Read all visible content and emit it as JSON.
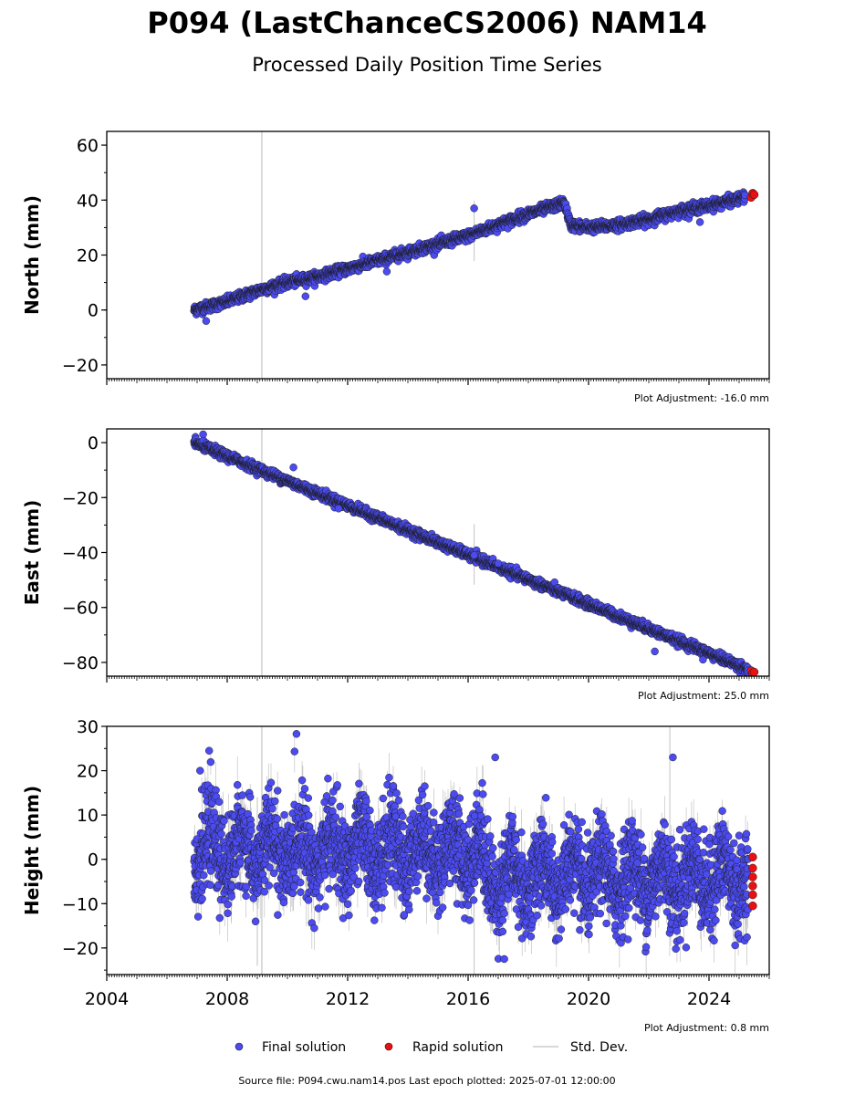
{
  "title": "P094 (LastChanceCS2006) NAM14",
  "subtitle": "Processed Daily Position Time Series",
  "source_note": "Source file: P094.cwu.nam14.pos  Last epoch plotted: 2025-07-01 12:00:00",
  "legend": {
    "final": "Final solution",
    "rapid": "Rapid solution",
    "stddev": "Std. Dev."
  },
  "colors": {
    "final": "#4b4bf0",
    "rapid": "#e81010",
    "stddev": "#bdbdbd",
    "marker_edge": "#1a1a1a"
  },
  "chart_data": [
    {
      "type": "scatter",
      "panel": "north",
      "ylabel": "North (mm)",
      "adjustment": "Plot Adjustment: -16.0 mm",
      "xlim": [
        2004,
        2026
      ],
      "ylim": [
        -25,
        65
      ],
      "yticks": [
        -20,
        0,
        20,
        40,
        60
      ],
      "ytick_labels": [
        "−20",
        "0",
        "20",
        "40",
        "60"
      ],
      "final_series": [
        {
          "x": 2006.9,
          "y": 0
        },
        {
          "x": 2008.0,
          "y": 3
        },
        {
          "x": 2009.0,
          "y": 7
        },
        {
          "x": 2010.0,
          "y": 10
        },
        {
          "x": 2011.0,
          "y": 12
        },
        {
          "x": 2012.0,
          "y": 15
        },
        {
          "x": 2013.0,
          "y": 18
        },
        {
          "x": 2014.0,
          "y": 21
        },
        {
          "x": 2015.0,
          "y": 24
        },
        {
          "x": 2016.0,
          "y": 27
        },
        {
          "x": 2017.0,
          "y": 31
        },
        {
          "x": 2018.0,
          "y": 35
        },
        {
          "x": 2019.2,
          "y": 39
        },
        {
          "x": 2019.4,
          "y": 31
        },
        {
          "x": 2020.0,
          "y": 30
        },
        {
          "x": 2021.0,
          "y": 31
        },
        {
          "x": 2022.0,
          "y": 33
        },
        {
          "x": 2023.0,
          "y": 36
        },
        {
          "x": 2024.0,
          "y": 38
        },
        {
          "x": 2025.2,
          "y": 41
        }
      ],
      "outliers": [
        {
          "x": 2007.3,
          "y": -4
        },
        {
          "x": 2016.2,
          "y": 37
        },
        {
          "x": 2010.6,
          "y": 5
        },
        {
          "x": 2013.3,
          "y": 14
        },
        {
          "x": 2023.7,
          "y": 32
        }
      ],
      "rapid_series": [
        {
          "x": 2025.4,
          "y": 41
        },
        {
          "x": 2025.45,
          "y": 42.5
        },
        {
          "x": 2025.5,
          "y": 42
        }
      ]
    },
    {
      "type": "scatter",
      "panel": "east",
      "ylabel": "East (mm)",
      "adjustment": "Plot Adjustment: 25.0 mm",
      "xlim": [
        2004,
        2026
      ],
      "ylim": [
        -85,
        5
      ],
      "yticks": [
        -80,
        -60,
        -40,
        -20,
        0
      ],
      "ytick_labels": [
        "−80",
        "−60",
        "−40",
        "−20",
        "0"
      ],
      "final_series": [
        {
          "x": 2006.9,
          "y": 0
        },
        {
          "x": 2025.3,
          "y": -82.5
        }
      ],
      "outliers": [
        {
          "x": 2007.2,
          "y": 3
        },
        {
          "x": 2010.2,
          "y": -9
        },
        {
          "x": 2011.7,
          "y": -24
        },
        {
          "x": 2016.2,
          "y": -41
        },
        {
          "x": 2017.0,
          "y": -44
        },
        {
          "x": 2022.2,
          "y": -76
        },
        {
          "x": 2023.8,
          "y": -79
        }
      ],
      "rapid_series": [
        {
          "x": 2025.4,
          "y": -83
        },
        {
          "x": 2025.45,
          "y": -84
        },
        {
          "x": 2025.5,
          "y": -83.5
        }
      ]
    },
    {
      "type": "scatter",
      "panel": "height",
      "ylabel": "Height (mm)",
      "adjustment": "Plot Adjustment: 0.8 mm",
      "xlim": [
        2004,
        2026
      ],
      "ylim": [
        -26,
        30
      ],
      "yticks": [
        -20,
        -10,
        0,
        10,
        20,
        30
      ],
      "ytick_labels": [
        "−20",
        "−10",
        "0",
        "10",
        "20",
        "30"
      ],
      "xticks": [
        2004,
        2008,
        2012,
        2016,
        2020,
        2024
      ],
      "xtick_labels": [
        "2004",
        "2008",
        "2012",
        "2016",
        "2020",
        "2024"
      ],
      "final_mean": 0,
      "final_spread": 10,
      "final_range": [
        2006.9,
        2025.3
      ],
      "outliers": [
        {
          "x": 2007.4,
          "y": 24.5
        },
        {
          "x": 2010.3,
          "y": 28.3
        },
        {
          "x": 2016.9,
          "y": 23
        },
        {
          "x": 2022.8,
          "y": 23
        },
        {
          "x": 2017.2,
          "y": -22.5
        },
        {
          "x": 2022.9,
          "y": -20.2
        },
        {
          "x": 2007.1,
          "y": 20
        }
      ],
      "rapid_series": [
        {
          "x": 2025.45,
          "y": -10.5
        },
        {
          "x": 2025.45,
          "y": -8
        },
        {
          "x": 2025.45,
          "y": -6
        },
        {
          "x": 2025.45,
          "y": -4
        },
        {
          "x": 2025.45,
          "y": -2
        },
        {
          "x": 2025.45,
          "y": 0.5
        }
      ]
    }
  ]
}
